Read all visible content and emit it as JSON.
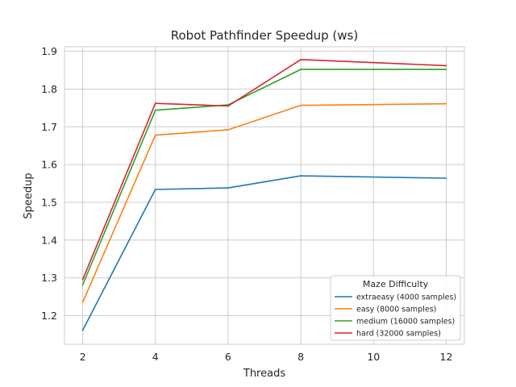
{
  "chart_data": {
    "type": "line",
    "title": "Robot Pathfinder Speedup (ws)",
    "xlabel": "Threads",
    "ylabel": "Speedup",
    "x": [
      2,
      4,
      6,
      8,
      12
    ],
    "xticks": [
      "2",
      "4",
      "6",
      "8",
      "10",
      "12"
    ],
    "yticks": [
      "1.2",
      "1.3",
      "1.4",
      "1.5",
      "1.6",
      "1.7",
      "1.8",
      "1.9"
    ],
    "xlim": [
      1.5,
      12.5
    ],
    "ylim": [
      1.124,
      1.912
    ],
    "grid": true,
    "legend": {
      "title": "Maze Difficulty",
      "placement": "lower-right"
    },
    "series": [
      {
        "name": "extraeasy (4000 samples)",
        "color": "#1f77b4",
        "values": [
          1.161,
          1.534,
          1.538,
          1.57,
          1.564
        ]
      },
      {
        "name": "easy (8000 samples)",
        "color": "#ff7f0e",
        "values": [
          1.235,
          1.678,
          1.692,
          1.757,
          1.761
        ]
      },
      {
        "name": "medium (16000 samples)",
        "color": "#2ca02c",
        "values": [
          1.281,
          1.744,
          1.758,
          1.852,
          1.852
        ]
      },
      {
        "name": "hard (32000 samples)",
        "color": "#d62728",
        "values": [
          1.295,
          1.762,
          1.755,
          1.878,
          1.862
        ]
      }
    ]
  }
}
